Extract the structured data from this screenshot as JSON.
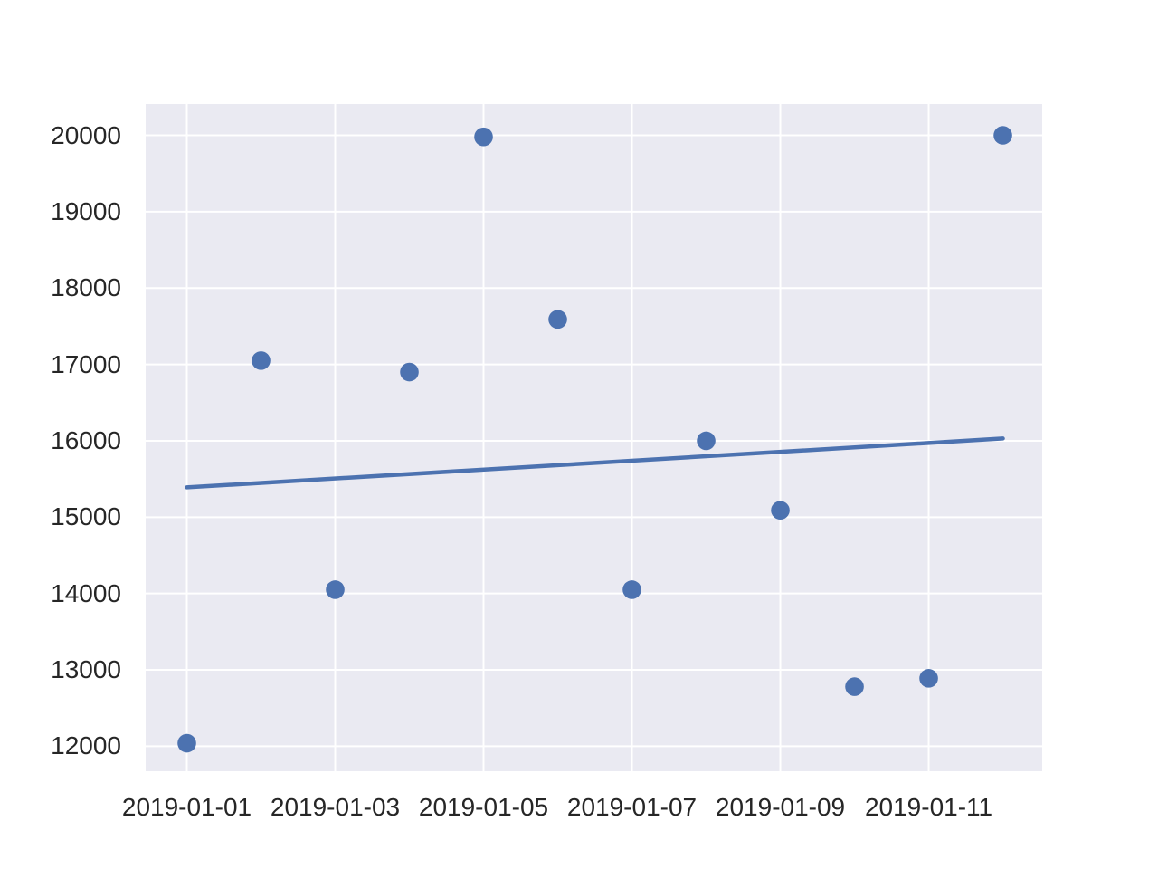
{
  "chart_data": {
    "type": "scatter",
    "title": "",
    "xlabel": "",
    "ylabel": "",
    "grid": true,
    "legend": null,
    "x_ticks": [
      {
        "label": "2019-01-01",
        "day": 1
      },
      {
        "label": "2019-01-03",
        "day": 3
      },
      {
        "label": "2019-01-05",
        "day": 5
      },
      {
        "label": "2019-01-07",
        "day": 7
      },
      {
        "label": "2019-01-09",
        "day": 9
      },
      {
        "label": "2019-01-11",
        "day": 11
      }
    ],
    "y_ticks": [
      12000,
      13000,
      14000,
      15000,
      16000,
      17000,
      18000,
      19000,
      20000
    ],
    "xlim_days": [
      0.445,
      12.53
    ],
    "ylim": [
      11673,
      20409
    ],
    "points": [
      {
        "date": "2019-01-01",
        "day": 1,
        "value": 12040
      },
      {
        "date": "2019-01-02",
        "day": 2,
        "value": 17050
      },
      {
        "date": "2019-01-03",
        "day": 3,
        "value": 14050
      },
      {
        "date": "2019-01-04",
        "day": 4,
        "value": 16900
      },
      {
        "date": "2019-01-05",
        "day": 5,
        "value": 19980
      },
      {
        "date": "2019-01-06",
        "day": 6,
        "value": 17590
      },
      {
        "date": "2019-01-07",
        "day": 7,
        "value": 14050
      },
      {
        "date": "2019-01-08",
        "day": 8,
        "value": 16000
      },
      {
        "date": "2019-01-09",
        "day": 9,
        "value": 15090
      },
      {
        "date": "2019-01-10",
        "day": 10,
        "value": 12780
      },
      {
        "date": "2019-01-11",
        "day": 11,
        "value": 12890
      },
      {
        "date": "2019-01-12",
        "day": 12,
        "value": 20000
      }
    ],
    "trend_line": {
      "start_day": 1,
      "start_value": 15390,
      "end_day": 12,
      "end_value": 16030
    },
    "colors": {
      "marker": "#4c72b0",
      "trend": "#4c72b0",
      "plot_bg": "#eaeaf2",
      "grid": "#ffffff",
      "tick_text": "#262626",
      "figure_bg": "#ffffff"
    }
  }
}
